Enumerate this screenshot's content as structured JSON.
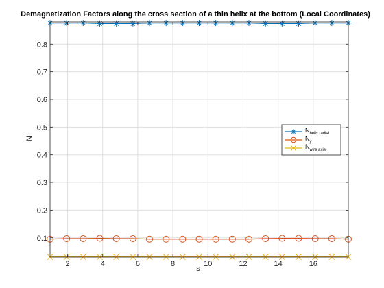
{
  "chart_data": {
    "type": "line",
    "title": "Demagnetization Factors along the cross section of a thin helix at the bottom (Local Coordinates)",
    "xlabel": "s",
    "ylabel": "N",
    "xlim": [
      1,
      18
    ],
    "ylim": [
      0.03,
      0.88
    ],
    "xticks": [
      2,
      4,
      6,
      8,
      10,
      12,
      14,
      16
    ],
    "yticks": [
      0.1,
      0.2,
      0.3,
      0.4,
      0.5,
      0.6,
      0.7,
      0.8
    ],
    "grid": true,
    "legend_position": "right",
    "x": [
      1,
      1.944,
      2.889,
      3.833,
      4.778,
      5.722,
      6.667,
      7.611,
      8.556,
      9.5,
      10.444,
      11.389,
      12.333,
      13.278,
      14.222,
      15.167,
      16.111,
      17.056,
      18
    ],
    "series": [
      {
        "name": "helix radial",
        "legend_main": "N",
        "legend_sub": "helix radial",
        "color": "#0072bd",
        "marker": "star",
        "values": [
          0.876,
          0.876,
          0.876,
          0.874,
          0.874,
          0.874,
          0.876,
          0.876,
          0.876,
          0.876,
          0.876,
          0.876,
          0.876,
          0.874,
          0.874,
          0.874,
          0.876,
          0.876,
          0.876
        ]
      },
      {
        "name": "y",
        "legend_main": "N",
        "legend_sub": "y",
        "color": "#d95319",
        "marker": "circle",
        "values": [
          0.095,
          0.097,
          0.097,
          0.098,
          0.097,
          0.097,
          0.095,
          0.095,
          0.095,
          0.095,
          0.095,
          0.095,
          0.095,
          0.097,
          0.098,
          0.098,
          0.097,
          0.097,
          0.095
        ]
      },
      {
        "name": "wire axis",
        "legend_main": "N",
        "legend_sub": "wire axis",
        "color": "#edb120",
        "marker": "x",
        "values": [
          0.031,
          0.031,
          0.031,
          0.031,
          0.031,
          0.031,
          0.031,
          0.031,
          0.031,
          0.031,
          0.031,
          0.031,
          0.031,
          0.031,
          0.031,
          0.031,
          0.031,
          0.031,
          0.031
        ]
      }
    ]
  }
}
